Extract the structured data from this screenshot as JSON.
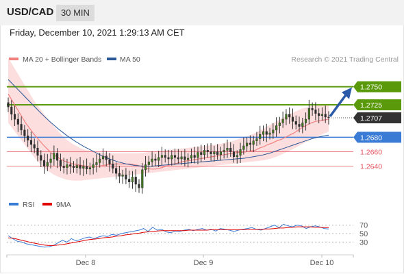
{
  "header": {
    "symbol": "USD/CAD",
    "timeframe": "30 MIN"
  },
  "datetime": "Friday, December 10, 2021 1:29:13 AM CET",
  "legend": {
    "ma20": "MA 20 + Bollinger Bands",
    "ma50": "MA 50"
  },
  "copyright": "Research © 2021 Trading Central",
  "rsi_legend": {
    "rsi": "RSI",
    "ma": "9MA"
  },
  "colors": {
    "green": "#5a9a0a",
    "blue": "#3a7bd5",
    "red": "#e8505b",
    "ma20": "#f08080",
    "ma50": "#2b5797",
    "arrow": "#2a5aa8",
    "current": "#333333"
  },
  "chart_data": [
    {
      "type": "candlestick",
      "title": "USD/CAD 30 MIN",
      "xlabel": "",
      "ylabel": "",
      "x_ticks": [
        "Dec 8",
        "Dec 9",
        "Dec 10"
      ],
      "ylim": [
        1.2595,
        1.278
      ],
      "current_price": 1.2707,
      "levels": [
        {
          "value": 1.275,
          "label": "1.2750",
          "style": "green-resistance"
        },
        {
          "value": 1.2725,
          "label": "1.2725",
          "style": "green-resistance"
        },
        {
          "value": 1.268,
          "label": "1.2680",
          "style": "blue-pivot"
        },
        {
          "value": 1.266,
          "label": "1.2660",
          "style": "red-support"
        },
        {
          "value": 1.264,
          "label": "1.2640",
          "style": "red-support"
        }
      ],
      "closes": [
        1.2722,
        1.2712,
        1.2705,
        1.2698,
        1.269,
        1.2682,
        1.2676,
        1.267,
        1.2665,
        1.2655,
        1.2648,
        1.264,
        1.2645,
        1.265,
        1.2658,
        1.2648,
        1.264,
        1.2638,
        1.2642,
        1.264,
        1.2638,
        1.2641,
        1.2637,
        1.264,
        1.2636,
        1.2638,
        1.2642,
        1.2645,
        1.265,
        1.2654,
        1.2649,
        1.2643,
        1.2637,
        1.263,
        1.2626,
        1.2628,
        1.2622,
        1.2618,
        1.2625,
        1.2615,
        1.261,
        1.2635,
        1.2642,
        1.2646,
        1.265,
        1.2648,
        1.2652,
        1.2655,
        1.2652,
        1.265,
        1.2655,
        1.2652,
        1.265,
        1.2653,
        1.2649,
        1.2651,
        1.2655,
        1.2652,
        1.2659,
        1.2656,
        1.2662,
        1.266,
        1.2657,
        1.266,
        1.2656,
        1.266,
        1.2662,
        1.2665,
        1.266,
        1.2653,
        1.2655,
        1.2663,
        1.2668,
        1.2672,
        1.267,
        1.2675,
        1.2678,
        1.2684,
        1.2688,
        1.2684,
        1.2686,
        1.269,
        1.2696,
        1.27,
        1.2705,
        1.2712,
        1.2708,
        1.2702,
        1.2698,
        1.2695,
        1.27,
        1.2705,
        1.272,
        1.2718,
        1.2713,
        1.271,
        1.2712,
        1.2708,
        1.2707
      ],
      "ma20": [
        1.274,
        1.273,
        1.272,
        1.271,
        1.27,
        1.2692,
        1.2684,
        1.2677,
        1.267,
        1.2664,
        1.2658,
        1.2654,
        1.265,
        1.2647,
        1.2645,
        1.2643,
        1.2642,
        1.2641,
        1.264,
        1.264,
        1.264,
        1.264,
        1.2641,
        1.2642,
        1.2643,
        1.2643,
        1.2643,
        1.2643,
        1.2643,
        1.2642,
        1.2641,
        1.2639,
        1.2637,
        1.2636,
        1.2636,
        1.2637,
        1.2639,
        1.2641,
        1.2643,
        1.2644,
        1.2646,
        1.2647,
        1.2648,
        1.2649,
        1.265,
        1.2651,
        1.2652,
        1.2653,
        1.2654,
        1.2655,
        1.2656,
        1.2657,
        1.2658,
        1.2659,
        1.2659,
        1.266,
        1.2661,
        1.2662,
        1.2665,
        1.2667,
        1.267,
        1.2672,
        1.2675,
        1.2677,
        1.268,
        1.2683,
        1.2686,
        1.269,
        1.2694,
        1.2697,
        1.27,
        1.2702,
        1.2703,
        1.2704,
        1.2705
      ],
      "bb_upper": [
        1.279,
        1.2775,
        1.276,
        1.2745,
        1.273,
        1.2718,
        1.2706,
        1.2695,
        1.2685,
        1.2676,
        1.267,
        1.2665,
        1.2662,
        1.266,
        1.2659,
        1.2658,
        1.2658,
        1.2658,
        1.2658,
        1.2658,
        1.2658,
        1.2659,
        1.266,
        1.2661,
        1.2662,
        1.2663,
        1.2664,
        1.2665,
        1.2666,
        1.2667,
        1.2668,
        1.2669,
        1.267,
        1.2672,
        1.2674,
        1.2677,
        1.268,
        1.2683,
        1.2687,
        1.2692,
        1.2697,
        1.2702,
        1.2707,
        1.2712,
        1.2716,
        1.272,
        1.2722,
        1.2724,
        1.2725,
        1.2726
      ],
      "bb_lower": [
        1.27,
        1.2688,
        1.2676,
        1.2664,
        1.2652,
        1.2642,
        1.2634,
        1.2628,
        1.2624,
        1.2621,
        1.262,
        1.262,
        1.2621,
        1.2622,
        1.2623,
        1.2624,
        1.2625,
        1.2626,
        1.2627,
        1.2628,
        1.2629,
        1.263,
        1.2631,
        1.2632,
        1.2633,
        1.2634,
        1.2635,
        1.2636,
        1.2637,
        1.2638,
        1.2639,
        1.264,
        1.2641,
        1.2642,
        1.2643,
        1.2644,
        1.2645,
        1.2646,
        1.2647,
        1.2648,
        1.265,
        1.2653,
        1.2657,
        1.2661,
        1.2666,
        1.2671,
        1.2676,
        1.268,
        1.2684,
        1.2688
      ],
      "ma50": [
        1.276,
        1.2748,
        1.2736,
        1.2724,
        1.2712,
        1.2701,
        1.2691,
        1.2682,
        1.2674,
        1.2667,
        1.2661,
        1.2655,
        1.265,
        1.2646,
        1.2643,
        1.2641,
        1.264,
        1.264,
        1.2641,
        1.2642,
        1.2643,
        1.2644,
        1.2645,
        1.2646,
        1.2647,
        1.2648,
        1.2649,
        1.265,
        1.2651,
        1.2653,
        1.2655,
        1.2658,
        1.2662,
        1.2666,
        1.267,
        1.2674,
        1.2678,
        1.2681,
        1.2683
      ]
    },
    {
      "type": "line",
      "title": "RSI",
      "y_ticks": [
        70,
        50,
        30
      ],
      "ylim": [
        0,
        100
      ],
      "series": [
        {
          "name": "RSI",
          "color": "#3a7bd5",
          "values": [
            45,
            38,
            32,
            30,
            26,
            24,
            22,
            20,
            18,
            19,
            22,
            28,
            34,
            30,
            38,
            33,
            36,
            40,
            42,
            38,
            42,
            45,
            43,
            48,
            46,
            50,
            52,
            54,
            56,
            58,
            62,
            55,
            65,
            58,
            60,
            54,
            52,
            56,
            55,
            58,
            60,
            57,
            60,
            62,
            58,
            60,
            56,
            62,
            60,
            58,
            55,
            58,
            60,
            62,
            64,
            60,
            58,
            62,
            66,
            70,
            64,
            72,
            68,
            66,
            70,
            68,
            62,
            66,
            68,
            66,
            62,
            61
          ]
        },
        {
          "name": "9MA",
          "color": "#e00000",
          "values": [
            40,
            39,
            37,
            34,
            32,
            29,
            27,
            25,
            23,
            22,
            22,
            23,
            24,
            26,
            28,
            30,
            32,
            34,
            36,
            37,
            38,
            40,
            41,
            42,
            44,
            45,
            47,
            48,
            50,
            51,
            53,
            54,
            55,
            56,
            57,
            57,
            57,
            57,
            57,
            57,
            58,
            58,
            58,
            58,
            58,
            59,
            59,
            59,
            59,
            59,
            59,
            59,
            59,
            60,
            60,
            60,
            60,
            61,
            61,
            62,
            63,
            63,
            64,
            65,
            66,
            66,
            66,
            66,
            65,
            65,
            64,
            64
          ]
        }
      ]
    }
  ]
}
